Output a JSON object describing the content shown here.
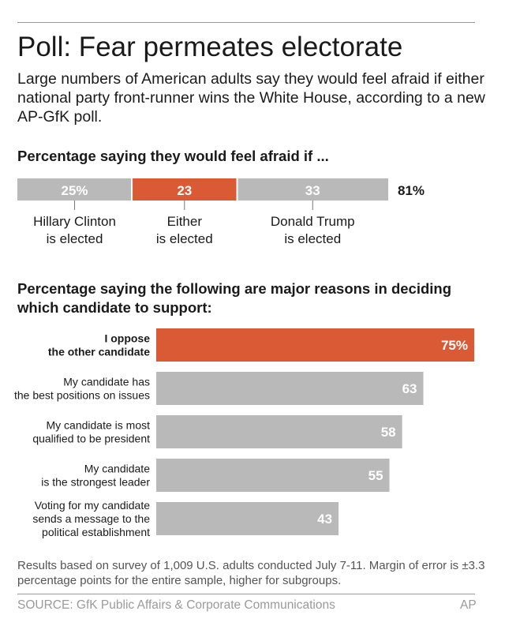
{
  "title": "Poll: Fear permeates electorate",
  "subtitle": "Large numbers of American adults say they would feel afraid if either national party front-runner wins the White House, according to a new AP-GfK poll.",
  "colors": {
    "highlight": "#d95a35",
    "bar": "#b9b9ba",
    "text": "#1a1a1a",
    "muted": "#9a9a9a"
  },
  "chart_data": [
    {
      "type": "bar",
      "stacked": true,
      "title": "Percentage saying they would feel afraid if ...",
      "categories": [
        "Hillary Clinton is elected",
        "Either is elected",
        "Donald Trump is elected"
      ],
      "category_lines": [
        [
          "Hillary Clinton",
          "is elected"
        ],
        [
          "Either",
          "is elected"
        ],
        [
          "Donald Trump",
          "is elected"
        ]
      ],
      "values": [
        25,
        23,
        33
      ],
      "value_labels": [
        "25%",
        "23",
        "33"
      ],
      "total": 81,
      "total_label": "81%",
      "highlight_index": 1
    },
    {
      "type": "bar",
      "orientation": "horizontal",
      "title": "Percentage saying the following are major reasons in deciding which candidate to support:",
      "categories": [
        "I oppose the other candidate",
        "My candidate has the best positions on issues",
        "My candidate is most qualified to be president",
        "My candidate is the strongest leader",
        "Voting for my candidate sends a message to the political establishment"
      ],
      "category_lines": [
        [
          "I oppose",
          "the other candidate"
        ],
        [
          "My candidate has",
          "the best positions on issues"
        ],
        [
          "My candidate is most",
          "qualified to be president"
        ],
        [
          "My candidate",
          "is the strongest leader"
        ],
        [
          "Voting for my candidate",
          "sends a message to the",
          "political establishment"
        ]
      ],
      "values": [
        75,
        63,
        58,
        55,
        43
      ],
      "value_labels": [
        "75%",
        "63",
        "58",
        "55",
        "43"
      ],
      "xlim": [
        0,
        75
      ],
      "highlight_index": 0
    }
  ],
  "footnote": "Results based on survey of 1,009 U.S. adults conducted July 7-11. Margin of error is ±3.3 percentage points for the entire sample, higher for subgroups.",
  "source": "SOURCE: GfK Public Affairs & Corporate Communications",
  "credit": "AP"
}
